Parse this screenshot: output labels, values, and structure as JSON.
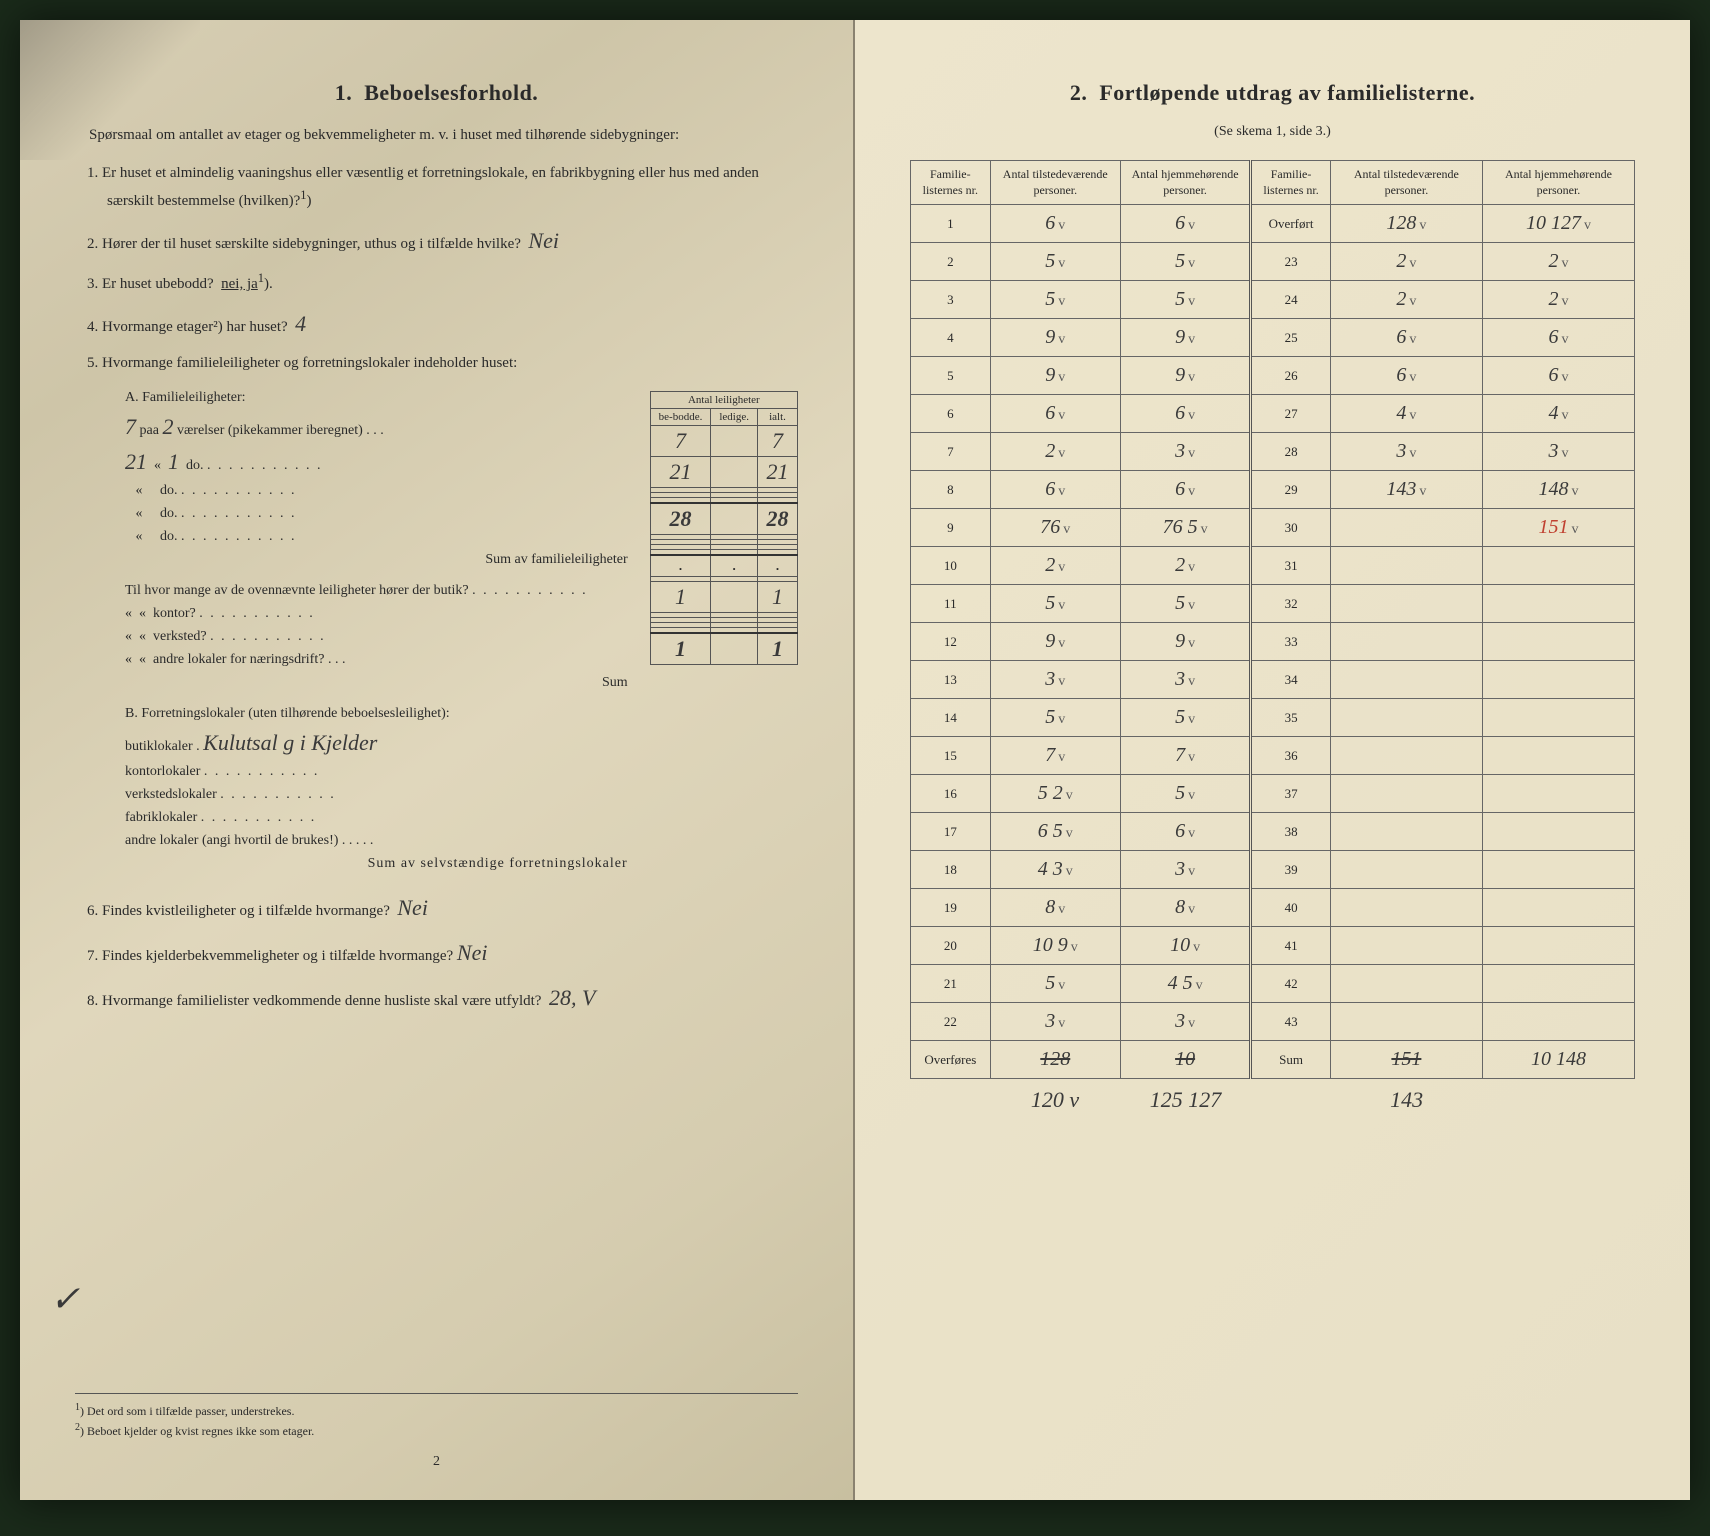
{
  "left": {
    "section_num": "1.",
    "section_title": "Beboelsesforhold.",
    "intro": "Spørsmaal om antallet av etager og bekvemmeligheter m. v. i huset med tilhørende sidebygninger:",
    "q1": "Er huset et almindelig vaaningshus eller væsentlig et forretningslokale, en fabrikbygning eller hus med anden særskilt bestemmelse (hvilken)?",
    "q2_label": "Hører der til huset særskilte sidebygninger, uthus og i tilfælde hvilke?",
    "q2_ans": "Nei",
    "q3_label": "Er huset ubebodd?",
    "q3_opts": "nei,  ja",
    "q4_label": "Hvormange etager²) har huset?",
    "q4_ans": "4",
    "q5_label": "Hvormange familieleiligheter og forretningslokaler indeholder huset:",
    "tbl_header": "Antal leiligheter",
    "tbl_cols": [
      "be-bodde.",
      "ledige.",
      "ialt."
    ],
    "A_title": "A. Familieleiligheter:",
    "A_row1_rooms": "2",
    "A_row1_text": "værelser (pikekammer iberegnet)",
    "A_row1_bebodde": "7",
    "A_row1_ialt": "7",
    "A_row2_prefix": "21",
    "A_row2_rooms": "1",
    "A_row2_text": "do.",
    "A_row2_bebodde": "21",
    "A_row2_ialt": "21",
    "A_sum_label": "Sum av familieleiligheter",
    "A_sum_bebodde": "28",
    "A_sum_ialt": "28",
    "til_label": "Til hvor mange av de ovennævnte leiligheter hører der butik?",
    "til_kontor": "kontor?",
    "til_verksted": "verksted?",
    "til_andre": "andre lokaler for næringsdrift?",
    "til_sum": "Sum",
    "B_title": "B. Forretningslokaler (uten tilhørende beboelsesleilighet):",
    "B_butik": "butiklokaler",
    "B_butik_hand": "Kulutsal g i Kjelder",
    "B_butik_bebodde": "1",
    "B_butik_ialt": "1",
    "B_kontor": "kontorlokaler",
    "B_verksted": "verkstedslokaler",
    "B_fabrik": "fabriklokaler",
    "B_andre": "andre lokaler (angi hvortil de brukes!)",
    "B_sum_label": "Sum av selvstændige forretningslokaler",
    "B_sum_bebodde": "1",
    "B_sum_ialt": "1",
    "q6": "Findes kvistleiligheter og i tilfælde hvormange?",
    "q6_ans": "Nei",
    "q7": "Findes kjelderbekvemmeligheter og i tilfælde hvormange?",
    "q7_ans": "Nei",
    "q8": "Hvormange familielister vedkommende denne husliste skal være utfyldt?",
    "q8_ans": "28, V",
    "fn1": "Det ord som i tilfælde passer, understrekes.",
    "fn2": "Beboet kjelder og kvist regnes ikke som etager.",
    "pagenum": "2"
  },
  "right": {
    "section_num": "2.",
    "section_title": "Fortløpende utdrag av familielisterne.",
    "subtitle": "(Se skema 1, side 3.)",
    "headers": [
      "Familie-listernes nr.",
      "Antal tilstedeværende personer.",
      "Antal hjemmehørende personer.",
      "Familie-listernes nr.",
      "Antal tilstedeværende personer.",
      "Antal hjemmehørende personer."
    ],
    "top_right_label": "Overført",
    "rows": [
      {
        "n1": "1",
        "a": "6",
        "b": "6",
        "n2": "Overført",
        "c": "128",
        "d": "10 127"
      },
      {
        "n1": "2",
        "a": "5",
        "b": "5",
        "n2": "23",
        "c": "2",
        "d": "2"
      },
      {
        "n1": "3",
        "a": "5",
        "b": "5",
        "n2": "24",
        "c": "2",
        "d": "2"
      },
      {
        "n1": "4",
        "a": "9",
        "b": "9",
        "n2": "25",
        "c": "6",
        "d": "6"
      },
      {
        "n1": "5",
        "a": "9",
        "b": "9",
        "n2": "26",
        "c": "6",
        "d": "6"
      },
      {
        "n1": "6",
        "a": "6",
        "b": "6",
        "n2": "27",
        "c": "4",
        "d": "4"
      },
      {
        "n1": "7",
        "a": "2",
        "b": "3",
        "n2": "28",
        "c": "3",
        "d": "3"
      },
      {
        "n1": "8",
        "a": "6",
        "b": "6",
        "n2": "29",
        "c": "143",
        "d": "148"
      },
      {
        "n1": "9",
        "a": "76",
        "b": "76 5",
        "n2": "30",
        "c": "",
        "d": "151"
      },
      {
        "n1": "10",
        "a": "2",
        "b": "2",
        "n2": "31",
        "c": "",
        "d": ""
      },
      {
        "n1": "11",
        "a": "5",
        "b": "5",
        "n2": "32",
        "c": "",
        "d": ""
      },
      {
        "n1": "12",
        "a": "9",
        "b": "9",
        "n2": "33",
        "c": "",
        "d": ""
      },
      {
        "n1": "13",
        "a": "3",
        "b": "3",
        "n2": "34",
        "c": "",
        "d": ""
      },
      {
        "n1": "14",
        "a": "5",
        "b": "5",
        "n2": "35",
        "c": "",
        "d": ""
      },
      {
        "n1": "15",
        "a": "7",
        "b": "7",
        "n2": "36",
        "c": "",
        "d": ""
      },
      {
        "n1": "16",
        "a": "5 2",
        "b": "5",
        "n2": "37",
        "c": "",
        "d": ""
      },
      {
        "n1": "17",
        "a": "6 5",
        "b": "6",
        "n2": "38",
        "c": "",
        "d": ""
      },
      {
        "n1": "18",
        "a": "4 3",
        "b": "3",
        "n2": "39",
        "c": "",
        "d": ""
      },
      {
        "n1": "19",
        "a": "8",
        "b": "8",
        "n2": "40",
        "c": "",
        "d": ""
      },
      {
        "n1": "20",
        "a": "10 9",
        "b": "10",
        "n2": "41",
        "c": "",
        "d": ""
      },
      {
        "n1": "21",
        "a": "5",
        "b": "4 5",
        "n2": "42",
        "c": "",
        "d": ""
      },
      {
        "n1": "22",
        "a": "3",
        "b": "3",
        "n2": "43",
        "c": "",
        "d": ""
      }
    ],
    "bottom_left_label": "Overføres",
    "bottom_a": "128",
    "bottom_b": "10",
    "bottom_right_label": "Sum",
    "bottom_c": "151",
    "bottom_d": "10 148",
    "below_a": "120 v",
    "below_b": "125 127",
    "below_c": "143"
  }
}
